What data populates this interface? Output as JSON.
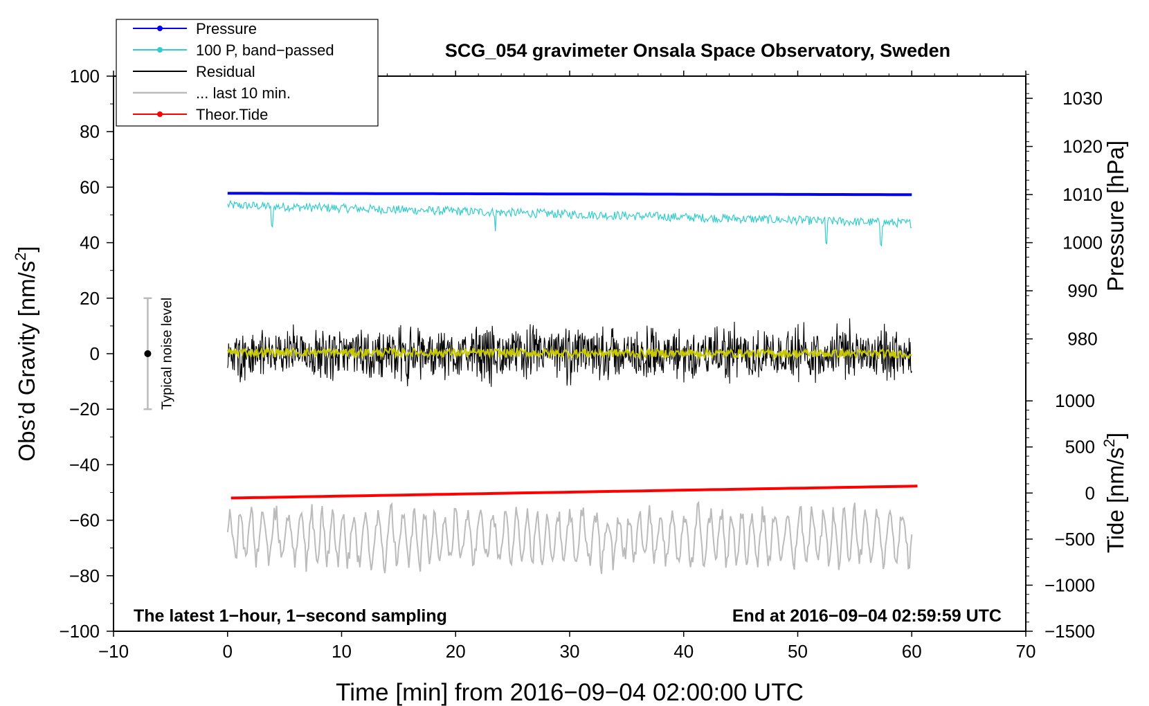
{
  "chart_data": {
    "type": "line",
    "title": "SCG_054 gravimeter Onsala Space Observatory, Sweden",
    "xlabel": "Time [min] from 2016−09−04 02:00:00 UTC",
    "ylabel_left_main": "Obs’d Gravity [nm/s",
    "ylabel_left_sup": "2",
    "ylabel_left_end": "]",
    "ylabel_right_pressure": "Pressure [hPa]",
    "ylabel_right_tide_main": "Tide [nm/s",
    "ylabel_right_tide_sup": "2",
    "ylabel_right_tide_end": "]",
    "xlim": [
      -10,
      70
    ],
    "ylim": [
      -100,
      100
    ],
    "x_ticks": [
      -10,
      0,
      10,
      20,
      30,
      40,
      50,
      60,
      70
    ],
    "x_tick_labels": [
      "−10",
      "0",
      "10",
      "20",
      "30",
      "40",
      "50",
      "60",
      "70"
    ],
    "y_ticks": [
      -100,
      -80,
      -60,
      -40,
      -20,
      0,
      20,
      40,
      60,
      80,
      100
    ],
    "y_tick_labels": [
      "−100",
      "−80",
      "−60",
      "−40",
      "−20",
      "0",
      "20",
      "40",
      "60",
      "80",
      "100"
    ],
    "pressure_axis": {
      "ticks": [
        980,
        990,
        1000,
        1010,
        1020,
        1030
      ],
      "tick_labels": [
        "980",
        "990",
        "1000",
        "1010",
        "1020",
        "1030"
      ],
      "map": {
        "value_a": 1000,
        "gravity_a": 40,
        "value_b": 1030,
        "gravity_b": 92
      }
    },
    "tide_axis": {
      "ticks": [
        -1500,
        -1000,
        -500,
        0,
        500,
        1000
      ],
      "tick_labels": [
        "−1500",
        "−1000",
        "−500",
        "0",
        "500",
        "1000"
      ],
      "map": {
        "value_a": -1500,
        "gravity_a": -100,
        "value_b": 1000,
        "gravity_b": -17
      }
    },
    "series": [
      {
        "name": "Pressure",
        "color": "#0000ff",
        "kind": "smooth",
        "x_start": 0,
        "x_end": 60,
        "y_start": 57.8,
        "y_end": 57.3
      },
      {
        "name": "100 P, band−passed",
        "color": "#33cccc",
        "kind": "noise",
        "x_start": 0,
        "x_end": 60,
        "y_start": 53.5,
        "y_end": 47,
        "amplitude": 1.6,
        "spikes": [
          [
            3.9,
            -8
          ],
          [
            23.5,
            -6
          ],
          [
            52.5,
            -8
          ],
          [
            57.3,
            -7
          ]
        ]
      },
      {
        "name": "Residual",
        "color": "#000000",
        "kind": "noise",
        "x_start": 0,
        "x_end": 60,
        "y_start": 0,
        "y_end": 0,
        "amplitude": 8
      },
      {
        "name": "Residual smoothed",
        "color": "#c8c800",
        "kind": "noise",
        "x_start": 0,
        "x_end": 60,
        "y_start": 0.5,
        "y_end": 0,
        "amplitude": 1.5
      },
      {
        "name": "... last 10 min.",
        "color": "#bbbbbb",
        "kind": "oscillation",
        "x_start": 0,
        "x_end": 60,
        "y_center": -66,
        "amplitude": 10
      },
      {
        "name": "Theor.Tide",
        "color": "#ff0000",
        "kind": "smooth",
        "x_start": 0.3,
        "x_end": 60.5,
        "y_start": -52,
        "y_end": -47.7
      }
    ],
    "legend": {
      "placement": "top-left",
      "entries": [
        {
          "label": "Pressure",
          "color": "#0000ff",
          "marker": true
        },
        {
          "label": "100 P, band−passed",
          "color": "#33cccc",
          "marker": true
        },
        {
          "label": "Residual",
          "color": "#000000",
          "marker": false
        },
        {
          "label": "... last 10 min.",
          "color": "#bbbbbb",
          "marker": false
        },
        {
          "label": "Theor.Tide",
          "color": "#ff0000",
          "marker": true
        }
      ]
    },
    "noise_indicator": {
      "label": "Typical noise level",
      "x": -7,
      "center": 0,
      "low": -20,
      "high": 20
    },
    "annotations": {
      "bottom_left": "The latest 1−hour, 1−second sampling",
      "bottom_right": "End at 2016−09−04 02:59:59 UTC"
    }
  }
}
